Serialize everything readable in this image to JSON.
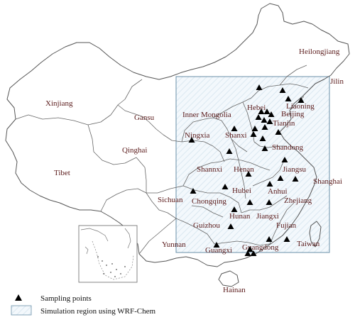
{
  "map": {
    "provinces": [
      {
        "name": "Heilongjiang"
      },
      {
        "name": "Jilin"
      },
      {
        "name": "Liaoning"
      },
      {
        "name": "Xinjiang"
      },
      {
        "name": "Gansu"
      },
      {
        "name": "Inner Mongolia"
      },
      {
        "name": "Hebei"
      },
      {
        "name": "Beijing"
      },
      {
        "name": "Tianjin"
      },
      {
        "name": "Ningxia"
      },
      {
        "name": "Shanxi"
      },
      {
        "name": "Qinghai"
      },
      {
        "name": "Shandong"
      },
      {
        "name": "Tibet"
      },
      {
        "name": "Shannxi"
      },
      {
        "name": "Henan"
      },
      {
        "name": "Jiangsu"
      },
      {
        "name": "Shanghai"
      },
      {
        "name": "Sichuan"
      },
      {
        "name": "Hubei"
      },
      {
        "name": "Anhui"
      },
      {
        "name": "Chongqing"
      },
      {
        "name": "Zhejiang"
      },
      {
        "name": "Hunan"
      },
      {
        "name": "Jiangxi"
      },
      {
        "name": "Guizhou"
      },
      {
        "name": "Yunnan"
      },
      {
        "name": "Fujian"
      },
      {
        "name": "Taiwan"
      },
      {
        "name": "Guangxi"
      },
      {
        "name": "Guangdong"
      },
      {
        "name": "Hainan"
      }
    ],
    "sampling_point_count": 36
  },
  "legend": {
    "sampling_label": "Sampling points",
    "region_label": "Simulation region using WRF-Chem"
  },
  "colors": {
    "border": "#555555",
    "label": "#5a1a1a",
    "region_fill": "#f2f8fc",
    "region_stroke": "#6a8fa8",
    "marker": "#000000"
  }
}
